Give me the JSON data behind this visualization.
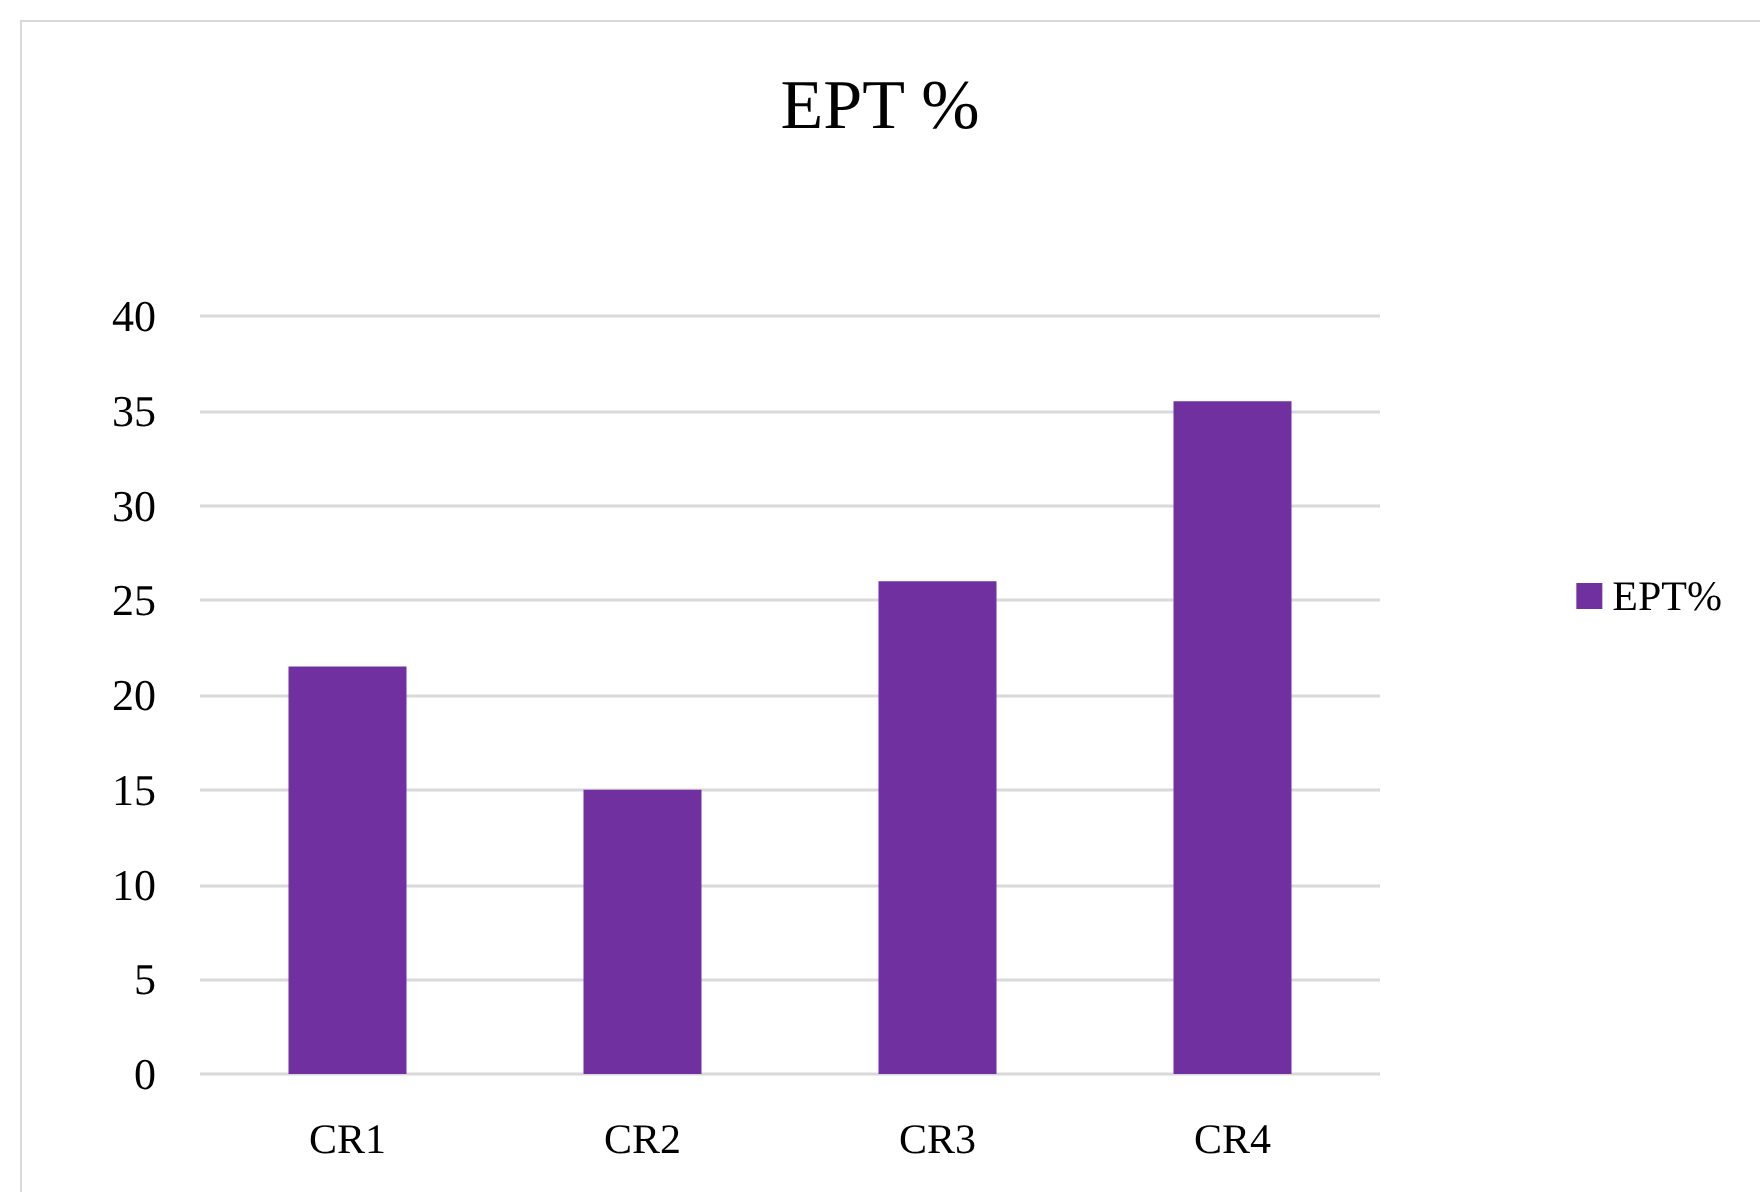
{
  "chart_data": {
    "type": "bar",
    "title": "EPT %",
    "categories": [
      "CR1",
      "CR2",
      "CR3",
      "CR4"
    ],
    "series": [
      {
        "name": "EPT%",
        "color": "#7030a0",
        "values": [
          21.5,
          15,
          26,
          35.5
        ]
      }
    ],
    "ylim": [
      0,
      40
    ],
    "yticks": [
      0,
      5,
      10,
      15,
      20,
      25,
      30,
      35,
      40
    ],
    "grid": "y",
    "legend": "right"
  }
}
